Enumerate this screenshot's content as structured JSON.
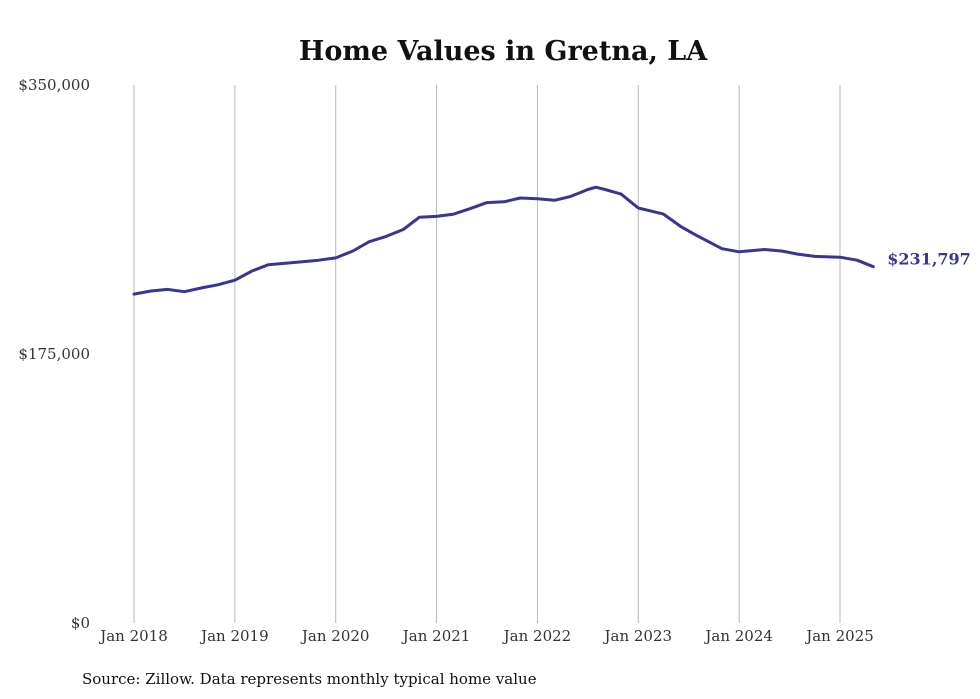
{
  "chart_data": {
    "type": "line",
    "title": "Home Values in Gretna, LA",
    "xlabel": "",
    "ylabel": "",
    "ylim": [
      0,
      350000
    ],
    "y_ticks": [
      "$0",
      "$175,000",
      "$350,000"
    ],
    "y_tick_values": [
      0,
      175000,
      350000
    ],
    "x_ticks": [
      "Jan 2018",
      "Jan 2019",
      "Jan 2020",
      "Jan 2021",
      "Jan 2022",
      "Jan 2023",
      "Jan 2024",
      "Jan 2025"
    ],
    "x_tick_values": [
      2018.0,
      2019.0,
      2020.0,
      2021.0,
      2022.0,
      2023.0,
      2024.0,
      2025.0
    ],
    "grid": "vertical",
    "series": [
      {
        "color": "#3b3592",
        "end_label": "$231,797",
        "points": [
          [
            2018.0,
            214000
          ],
          [
            2018.17,
            216000
          ],
          [
            2018.33,
            217000
          ],
          [
            2018.5,
            215500
          ],
          [
            2018.67,
            218000
          ],
          [
            2018.83,
            220000
          ],
          [
            2019.0,
            223000
          ],
          [
            2019.17,
            229000
          ],
          [
            2019.33,
            233000
          ],
          [
            2019.5,
            234000
          ],
          [
            2019.67,
            235000
          ],
          [
            2019.83,
            236000
          ],
          [
            2020.0,
            237500
          ],
          [
            2020.17,
            242000
          ],
          [
            2020.33,
            248000
          ],
          [
            2020.5,
            251500
          ],
          [
            2020.67,
            256000
          ],
          [
            2020.83,
            264000
          ],
          [
            2021.0,
            264500
          ],
          [
            2021.17,
            266000
          ],
          [
            2021.33,
            269500
          ],
          [
            2021.5,
            273500
          ],
          [
            2021.67,
            274000
          ],
          [
            2021.83,
            276500
          ],
          [
            2022.0,
            276000
          ],
          [
            2022.17,
            275000
          ],
          [
            2022.33,
            277500
          ],
          [
            2022.5,
            282000
          ],
          [
            2022.58,
            283500
          ],
          [
            2022.67,
            282000
          ],
          [
            2022.83,
            279000
          ],
          [
            2023.0,
            270000
          ],
          [
            2023.25,
            266000
          ],
          [
            2023.42,
            258000
          ],
          [
            2023.58,
            252000
          ],
          [
            2023.83,
            243500
          ],
          [
            2024.0,
            241500
          ],
          [
            2024.17,
            242500
          ],
          [
            2024.25,
            243000
          ],
          [
            2024.42,
            242000
          ],
          [
            2024.58,
            240000
          ],
          [
            2024.75,
            238500
          ],
          [
            2025.0,
            238000
          ],
          [
            2025.17,
            236000
          ],
          [
            2025.33,
            231797
          ]
        ]
      }
    ]
  },
  "footer": {
    "source": "Source: Zillow. Data represents monthly typical home value"
  }
}
